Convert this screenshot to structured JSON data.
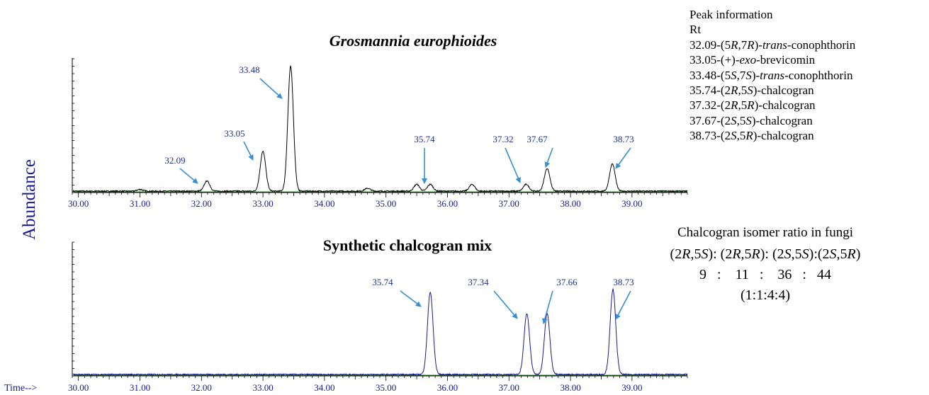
{
  "y_axis_label": "Abundance",
  "time_axis_prefix": "Time-->",
  "chart_data": [
    {
      "type": "line",
      "title": "Grosmannia europhioides",
      "xlabel": "Time",
      "ylabel": "Abundance",
      "xlim": [
        29.9,
        39.9
      ],
      "x_ticks": [
        "30.00",
        "31.00",
        "32.00",
        "33.00",
        "34.00",
        "35.00",
        "36.00",
        "37.00",
        "38.00",
        "39.00"
      ],
      "grid": false,
      "line_color": "#000000",
      "baseline_color": "#2e8b2e",
      "label_color": "#1f2f8f",
      "arrow_color": "#3a8fd0",
      "peaks": [
        {
          "rt": 31.0,
          "height": 0.015
        },
        {
          "rt": 32.09,
          "height": 0.09,
          "label": "32.09"
        },
        {
          "rt": 33.0,
          "height": 0.35,
          "label": "33.05"
        },
        {
          "rt": 33.45,
          "height": 1.1,
          "label": "33.48"
        },
        {
          "rt": 34.7,
          "height": 0.025
        },
        {
          "rt": 35.5,
          "height": 0.06
        },
        {
          "rt": 35.72,
          "height": 0.06,
          "label": "35.74"
        },
        {
          "rt": 36.4,
          "height": 0.06
        },
        {
          "rt": 37.28,
          "height": 0.06,
          "label": "37.32"
        },
        {
          "rt": 37.62,
          "height": 0.2,
          "label": "37.67"
        },
        {
          "rt": 38.68,
          "height": 0.24,
          "label": "38.73"
        }
      ]
    },
    {
      "type": "line",
      "title": "Synthetic chalcogran mix",
      "xlabel": "Time",
      "ylabel": "Abundance",
      "xlim": [
        29.9,
        39.9
      ],
      "x_ticks": [
        "30.00",
        "31.00",
        "32.00",
        "33.00",
        "34.00",
        "35.00",
        "36.00",
        "37.00",
        "38.00",
        "39.00"
      ],
      "grid": false,
      "line_color": "#1a1a8c",
      "baseline_color": "#2e8b2e",
      "label_color": "#1f2f8f",
      "arrow_color": "#3a8fd0",
      "peaks": [
        {
          "rt": 35.72,
          "height": 0.65,
          "label": "35.74"
        },
        {
          "rt": 37.29,
          "height": 0.48,
          "label": "37.34"
        },
        {
          "rt": 37.62,
          "height": 0.48,
          "label": "37.66"
        },
        {
          "rt": 38.69,
          "height": 0.67,
          "label": "38.73"
        }
      ]
    }
  ],
  "peak_information": {
    "heading": "Peak information",
    "subheading": "Rt",
    "items": [
      [
        {
          "t": "32.09-(5"
        },
        {
          "t": "R",
          "i": true
        },
        {
          "t": ",7"
        },
        {
          "t": "R",
          "i": true
        },
        {
          "t": ")-"
        },
        {
          "t": "trans",
          "i": true
        },
        {
          "t": "-conophthorin"
        }
      ],
      [
        {
          "t": "33.05-(+)-"
        },
        {
          "t": "exo",
          "i": true
        },
        {
          "t": "-brevicomin"
        }
      ],
      [
        {
          "t": "33.48-(5"
        },
        {
          "t": "S",
          "i": true
        },
        {
          "t": ",7"
        },
        {
          "t": "S",
          "i": true
        },
        {
          "t": ")-"
        },
        {
          "t": "trans",
          "i": true
        },
        {
          "t": "-conophthorin"
        }
      ],
      [
        {
          "t": "35.74-(2"
        },
        {
          "t": "R",
          "i": true
        },
        {
          "t": ",5"
        },
        {
          "t": "S",
          "i": true
        },
        {
          "t": ")-chalcogran"
        }
      ],
      [
        {
          "t": "37.32-(2"
        },
        {
          "t": "R",
          "i": true
        },
        {
          "t": ",5"
        },
        {
          "t": "R",
          "i": true
        },
        {
          "t": ")-chalcogran"
        }
      ],
      [
        {
          "t": "37.67-(2"
        },
        {
          "t": "S",
          "i": true
        },
        {
          "t": ",5"
        },
        {
          "t": "S",
          "i": true
        },
        {
          "t": ")-chalcogran"
        }
      ],
      [
        {
          "t": "38.73-(2"
        },
        {
          "t": "S",
          "i": true
        },
        {
          "t": ",5"
        },
        {
          "t": "R",
          "i": true
        },
        {
          "t": ")-chalcogran"
        }
      ]
    ]
  },
  "isomer_ratio": {
    "title": "Chalcogran isomer ratio in fungi",
    "header": [
      {
        "t": "(2"
      },
      {
        "t": "R",
        "i": true
      },
      {
        "t": ",5"
      },
      {
        "t": "S",
        "i": true
      },
      {
        "t": "): (2"
      },
      {
        "t": "R",
        "i": true
      },
      {
        "t": ",5"
      },
      {
        "t": "R",
        "i": true
      },
      {
        "t": "): (2"
      },
      {
        "t": "S",
        "i": true
      },
      {
        "t": ",5"
      },
      {
        "t": "S",
        "i": true
      },
      {
        "t": "):(2"
      },
      {
        "t": "S",
        "i": true
      },
      {
        "t": ",5"
      },
      {
        "t": "R",
        "i": true
      },
      {
        "t": ")"
      }
    ],
    "values": "9   :    11   :    36   :   44",
    "simplified": "(1:1:4:4)"
  }
}
